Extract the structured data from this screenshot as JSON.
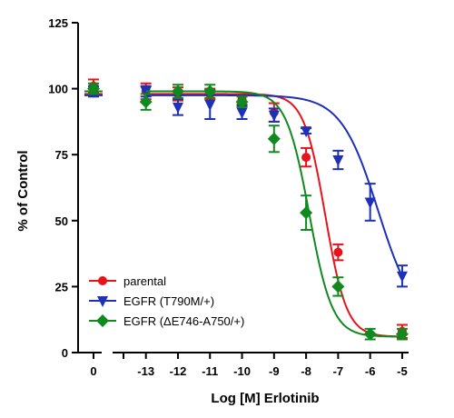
{
  "chart_data": {
    "type": "scatter",
    "xlabel": "Log [M] Erlotinib",
    "ylabel": "% of Control",
    "xlim": [
      -13.7,
      -4.8
    ],
    "ylim": [
      0,
      125
    ],
    "x_break": {
      "control_label": "0",
      "control_x": 0
    },
    "xticks": [
      -13,
      -12,
      -11,
      -10,
      -9,
      -8,
      -7,
      -6,
      -5
    ],
    "yticks": [
      0,
      25,
      50,
      75,
      100,
      125
    ],
    "grid": false,
    "legend_position": "bottom-left",
    "series": [
      {
        "name": "parental",
        "color": "#e8131a",
        "marker": "circle",
        "control": {
          "y": 101,
          "err": 2.5
        },
        "points": [
          {
            "x": -13,
            "y": 99,
            "err": 3
          },
          {
            "x": -12,
            "y": 98,
            "err": 2.5
          },
          {
            "x": -11,
            "y": 98,
            "err": 2
          },
          {
            "x": -10,
            "y": 96,
            "err": 2
          },
          {
            "x": -9,
            "y": 91,
            "err": 3.5
          },
          {
            "x": -8,
            "y": 74,
            "err": 3.5
          },
          {
            "x": -7,
            "y": 38,
            "err": 3
          },
          {
            "x": -5,
            "y": 8,
            "err": 2.5
          }
        ],
        "fit": {
          "top": 98,
          "bottom": 6,
          "logEC50": -7.4,
          "hill": 1.3
        }
      },
      {
        "name": "EGFR (T790M/+)",
        "color": "#1e2fb8",
        "marker": "triangle-down",
        "control": {
          "y": 99,
          "err": 2
        },
        "points": [
          {
            "x": -13,
            "y": 99,
            "err": 2
          },
          {
            "x": -12,
            "y": 93,
            "err": 3
          },
          {
            "x": -11,
            "y": 94,
            "err": 5.5
          },
          {
            "x": -10,
            "y": 91,
            "err": 2.5
          },
          {
            "x": -9,
            "y": 90,
            "err": 2.5
          },
          {
            "x": -8,
            "y": 84,
            "err": 1
          },
          {
            "x": -7,
            "y": 73,
            "err": 3.5
          },
          {
            "x": -6,
            "y": 57,
            "err": 7
          },
          {
            "x": -5,
            "y": 29,
            "err": 4
          }
        ],
        "fit": {
          "top": 97.5,
          "bottom": 10,
          "logEC50": -5.75,
          "hill": 0.75
        }
      },
      {
        "name": "EGFR (ΔE746-A750/+)",
        "color": "#0f8a1e",
        "marker": "diamond",
        "control": {
          "y": 100,
          "err": 2
        },
        "points": [
          {
            "x": -13,
            "y": 95,
            "err": 3
          },
          {
            "x": -12,
            "y": 99,
            "err": 2.5
          },
          {
            "x": -11,
            "y": 99,
            "err": 2.5
          },
          {
            "x": -10,
            "y": 95,
            "err": 2
          },
          {
            "x": -9,
            "y": 81,
            "err": 5
          },
          {
            "x": -8,
            "y": 53,
            "err": 6.5
          },
          {
            "x": -7,
            "y": 25,
            "err": 3.5
          },
          {
            "x": -6,
            "y": 7,
            "err": 2
          },
          {
            "x": -5,
            "y": 7,
            "err": 2
          }
        ],
        "fit": {
          "top": 99,
          "bottom": 6,
          "logEC50": -7.9,
          "hill": 1.2
        }
      }
    ]
  }
}
